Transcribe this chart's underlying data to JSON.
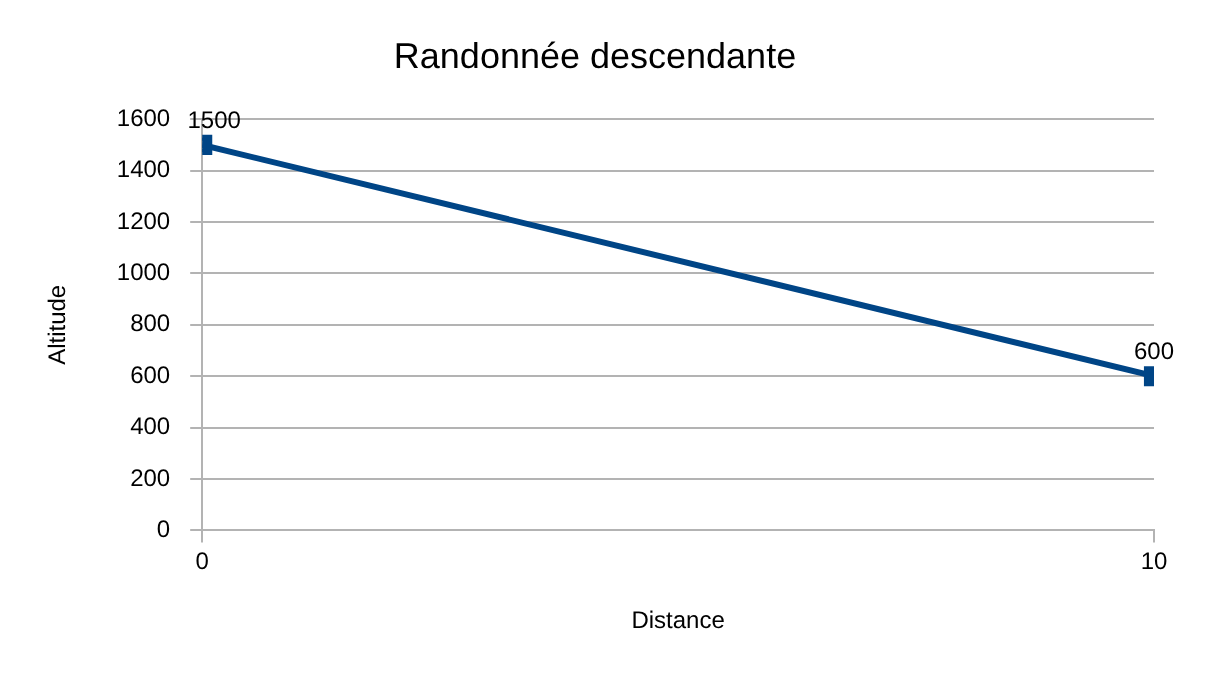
{
  "chart_data": {
    "type": "line",
    "title": "Randonnée descendante",
    "xlabel": "Distance",
    "ylabel": "Altitude",
    "x": [
      0,
      10
    ],
    "series": [
      {
        "color": "#004586",
        "values": [
          1500,
          600
        ]
      }
    ],
    "xlim": [
      0,
      10
    ],
    "xticks": [
      0,
      10
    ],
    "ylim": [
      0,
      1600
    ],
    "yticks": [
      0,
      200,
      400,
      600,
      800,
      1000,
      1200,
      1400,
      1600
    ],
    "grid": "y",
    "legend": false,
    "marker": "square",
    "line_style": "solid",
    "data_labels": true
  }
}
